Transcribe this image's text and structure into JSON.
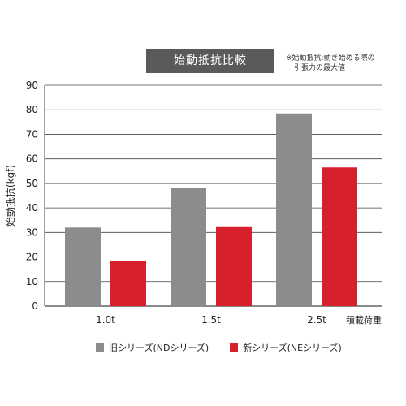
{
  "chart_data": {
    "type": "bar",
    "title": "始動抵抗比較",
    "note": [
      "※始動抵抗:動き始める際の",
      "引張力の最大値"
    ],
    "ylabel": "始動抵抗(kgf)",
    "xlabel": "積載荷重",
    "categories": [
      "1.0t",
      "1.5t",
      "2.5t"
    ],
    "ylim": [
      0,
      90
    ],
    "yticks": [
      0,
      10,
      20,
      30,
      40,
      50,
      60,
      70,
      80,
      90
    ],
    "grid": true,
    "legend_position": "bottom",
    "series": [
      {
        "name": "旧シリーズ(NDシリーズ)",
        "color": "#8c8c8c",
        "values": [
          32,
          48,
          78.5
        ]
      },
      {
        "name": "新シリーズ(NEシリーズ)",
        "color": "#d7202c",
        "values": [
          18.5,
          32.5,
          56.5
        ]
      }
    ]
  }
}
